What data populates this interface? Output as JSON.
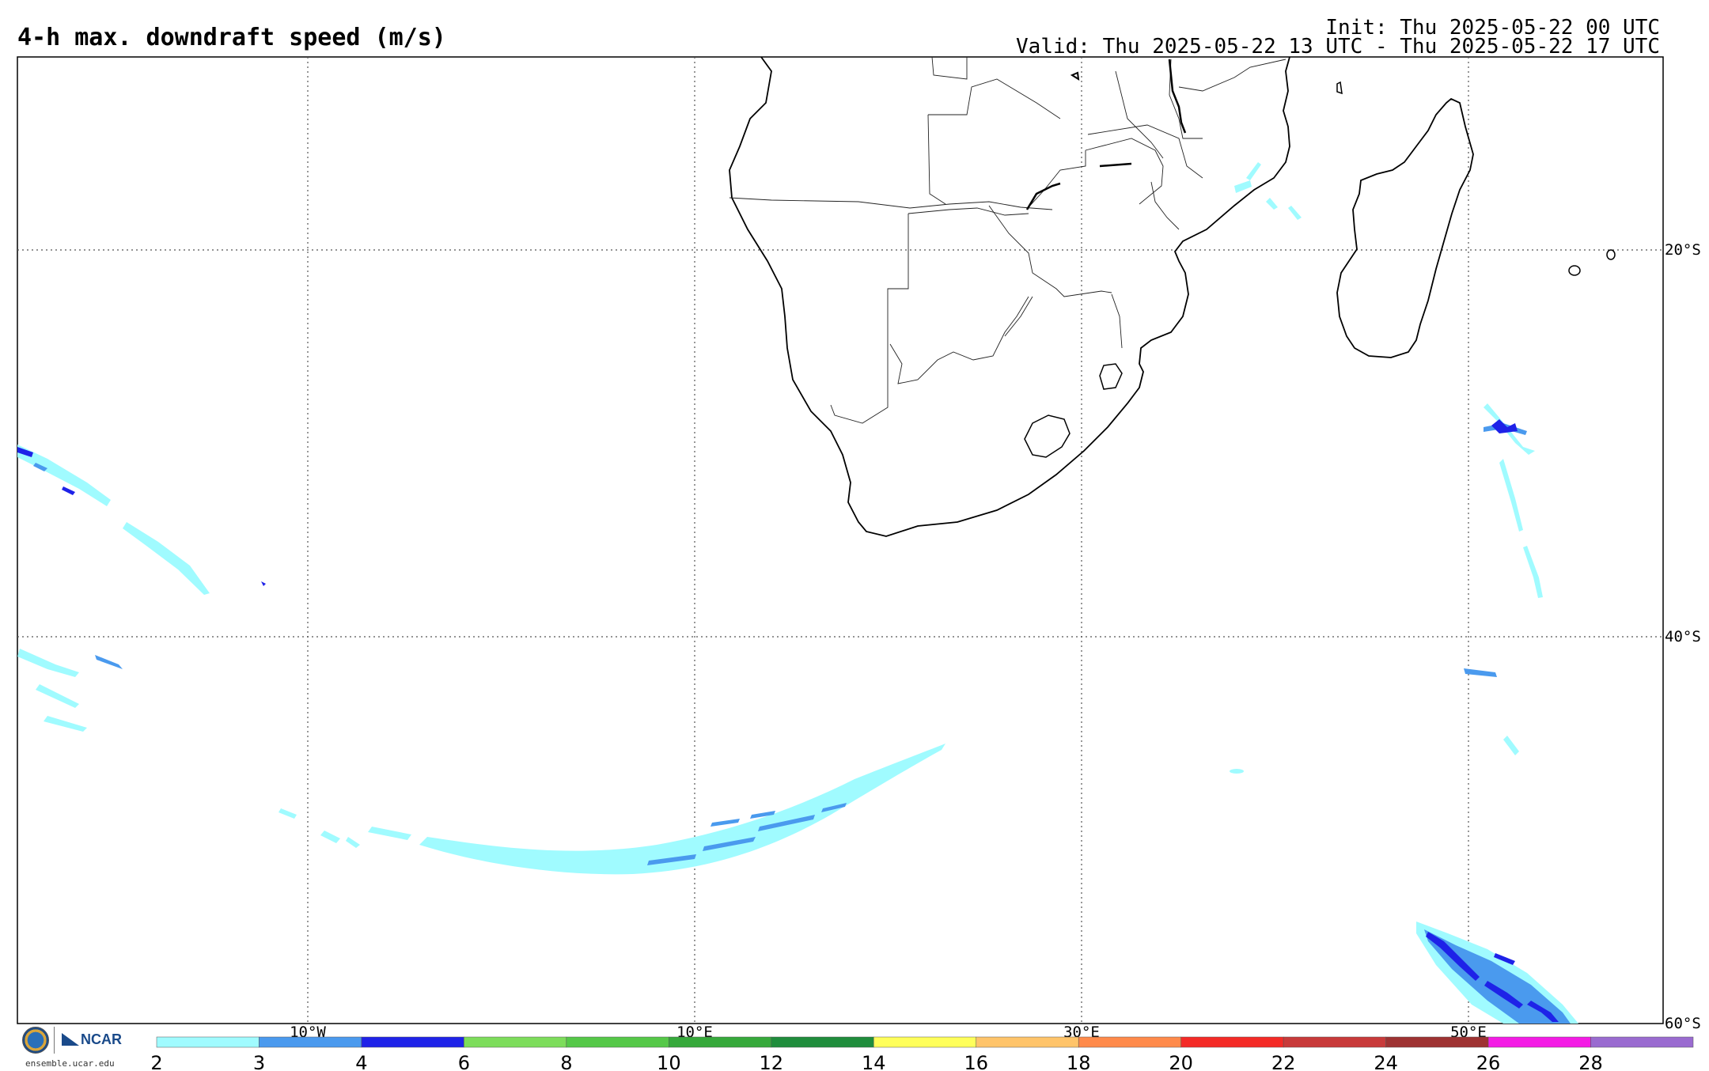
{
  "header": {
    "title": "4-h max. downdraft speed (m/s)",
    "init": "Init: Thu 2025-05-22 00 UTC",
    "valid": "Valid: Thu 2025-05-22 13 UTC - Thu 2025-05-22 17 UTC"
  },
  "map": {
    "lon_labels": [
      "10°W",
      "10°E",
      "30°E",
      "50°E"
    ],
    "lat_labels": [
      "20°S",
      "40°S",
      "60°S"
    ]
  },
  "colorbar": {
    "ticks": [
      "2",
      "3",
      "4",
      "6",
      "8",
      "10",
      "12",
      "14",
      "16",
      "18",
      "20",
      "22",
      "24",
      "26",
      "28"
    ],
    "colors": [
      "#a0fbff",
      "#4a9aee",
      "#1e22e8",
      "#7ddd5b",
      "#55c848",
      "#36a93b",
      "#1f8d3c",
      "#ffff5a",
      "#ffc46a",
      "#ff8a4a",
      "#f42a26",
      "#c83a3a",
      "#9e3232",
      "#f41be5",
      "#9a6bd0"
    ]
  },
  "footer": {
    "site": "ensemble.ucar.edu",
    "ncar": "NCAR",
    "nsf": "NSF"
  }
}
